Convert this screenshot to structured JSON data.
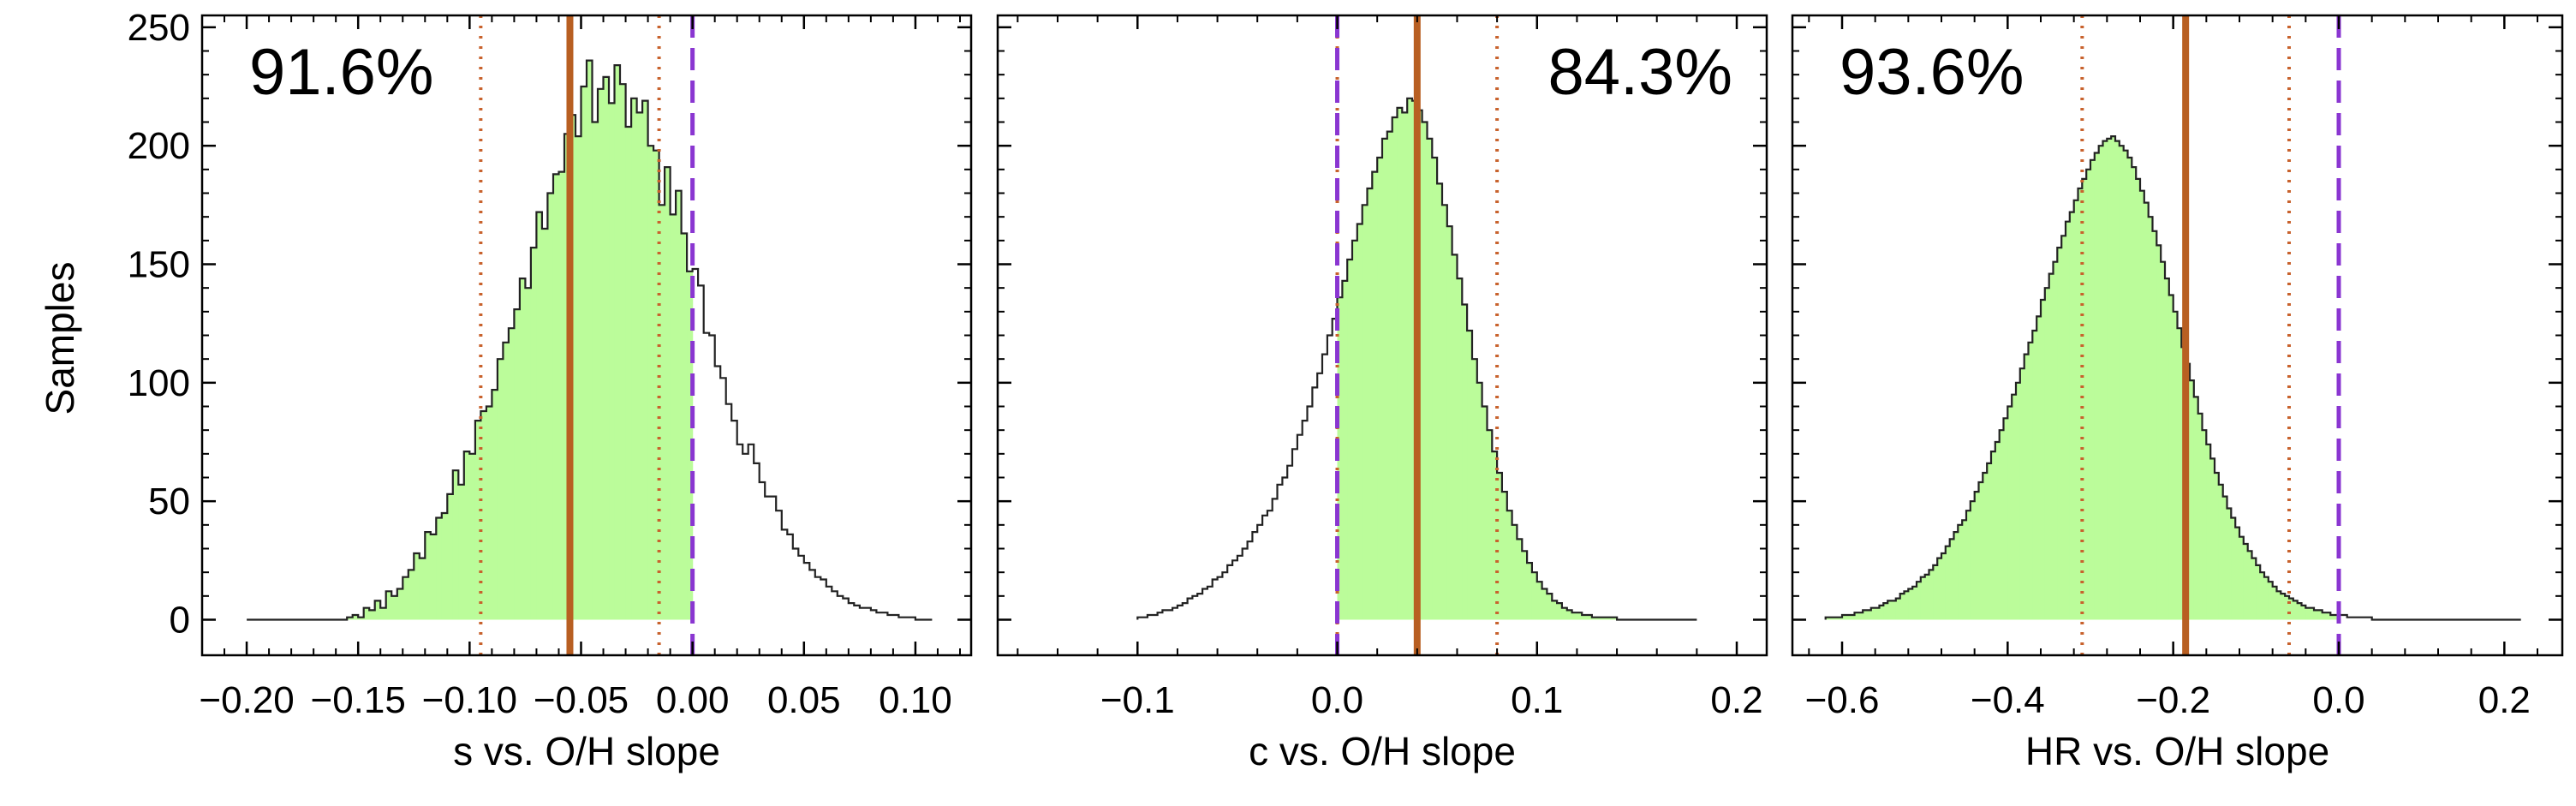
{
  "figure": {
    "ylabel": "Samples",
    "colors": {
      "fill": "#bbfc9a",
      "outline": "#222222",
      "median": "#b85f22",
      "interval": "#c8622d",
      "zero": "#8a36d1"
    }
  },
  "chart_data": [
    {
      "type": "histogram",
      "xlabel": "s vs. O/H slope",
      "ylabel": "Samples",
      "xlim": [
        -0.22,
        0.125
      ],
      "ylim": [
        -15,
        255
      ],
      "xticks": [
        -0.2,
        -0.15,
        -0.1,
        -0.05,
        0.0,
        0.05,
        0.1
      ],
      "xtick_labels": [
        "−0.20",
        "−0.15",
        "−0.10",
        "−0.05",
        "0.00",
        "0.05",
        "0.10"
      ],
      "yticks": [
        0,
        50,
        100,
        150,
        200,
        250
      ],
      "ytick_labels": [
        "0",
        "50",
        "100",
        "150",
        "200",
        "250"
      ],
      "percent_label": "91.6%",
      "percent_position": "top-left",
      "shaded_side": "negative",
      "median": -0.055,
      "interval": [
        -0.095,
        -0.015
      ],
      "zero_line": 0.0,
      "bins": {
        "start": -0.2,
        "end": 0.105,
        "width": 0.0025
      },
      "counts": [
        0,
        0,
        0,
        0,
        0,
        0,
        0,
        0,
        0,
        0,
        0,
        0,
        0,
        0,
        0,
        0,
        0,
        0,
        1,
        2,
        1,
        5,
        4,
        8,
        5,
        12,
        10,
        13,
        18,
        21,
        28,
        26,
        37,
        36,
        43,
        45,
        53,
        63,
        57,
        71,
        70,
        84,
        88,
        90,
        97,
        110,
        117,
        123,
        131,
        144,
        140,
        157,
        172,
        165,
        180,
        188,
        189,
        205,
        213,
        204,
        225,
        236,
        210,
        224,
        229,
        218,
        234,
        226,
        208,
        220,
        214,
        219,
        200,
        198,
        175,
        191,
        171,
        181,
        163,
        147,
        148,
        141,
        121,
        120,
        107,
        102,
        91,
        84,
        74,
        70,
        74,
        66,
        58,
        52,
        52,
        46,
        38,
        36,
        30,
        27,
        24,
        21,
        18,
        17,
        14,
        12,
        10,
        9,
        7,
        6,
        5,
        5,
        4,
        3,
        3,
        2,
        2,
        1,
        1,
        1,
        0,
        0,
        0
      ]
    },
    {
      "type": "histogram",
      "xlabel": "c vs. O/H slope",
      "xlim": [
        -0.17,
        0.215
      ],
      "ylim": [
        -15,
        255
      ],
      "xticks": [
        -0.1,
        0.0,
        0.1,
        0.2
      ],
      "xtick_labels": [
        "−0.1",
        "0.0",
        "0.1",
        "0.2"
      ],
      "yticks": [
        0,
        50,
        100,
        150,
        200,
        250
      ],
      "percent_label": "84.3%",
      "percent_position": "top-right",
      "shaded_side": "positive",
      "median": 0.04,
      "interval": [
        0.0,
        0.08
      ],
      "zero_line": 0.0,
      "bins": {
        "start": -0.1,
        "end": 0.18,
        "width": 0.0025
      },
      "counts": [
        1,
        1,
        2,
        2,
        3,
        4,
        4,
        5,
        6,
        7,
        9,
        10,
        11,
        13,
        14,
        17,
        18,
        20,
        23,
        25,
        27,
        30,
        33,
        37,
        40,
        44,
        46,
        51,
        57,
        60,
        65,
        72,
        78,
        84,
        90,
        98,
        104,
        112,
        120,
        127,
        136,
        143,
        152,
        160,
        167,
        175,
        182,
        189,
        195,
        203,
        206,
        212,
        216,
        214,
        220,
        219,
        215,
        210,
        203,
        195,
        184,
        175,
        166,
        154,
        144,
        133,
        122,
        110,
        100,
        90,
        80,
        71,
        62,
        54,
        46,
        40,
        34,
        29,
        24,
        20,
        16,
        13,
        11,
        8,
        7,
        5,
        4,
        3,
        3,
        2,
        2,
        1,
        1,
        1,
        1,
        1,
        0,
        0,
        0,
        0,
        0,
        0,
        0,
        0,
        0,
        0,
        0,
        0,
        0,
        0,
        0,
        0
      ]
    },
    {
      "type": "histogram",
      "xlabel": "HR vs. O/H slope",
      "xlim": [
        -0.66,
        0.27
      ],
      "ylim": [
        -15,
        255
      ],
      "xticks": [
        -0.6,
        -0.4,
        -0.2,
        0.0,
        0.2
      ],
      "xtick_labels": [
        "−0.6",
        "−0.4",
        "−0.2",
        "0.0",
        "0.2"
      ],
      "yticks": [
        0,
        50,
        100,
        150,
        200,
        250
      ],
      "percent_label": "93.6%",
      "percent_position": "top-left",
      "shaded_side": "negative",
      "median": -0.185,
      "interval": [
        -0.31,
        -0.06
      ],
      "zero_line": 0.0,
      "bins": {
        "start": -0.62,
        "end": 0.22,
        "width": 0.005
      },
      "counts": [
        1,
        1,
        1,
        1,
        2,
        2,
        2,
        3,
        3,
        4,
        4,
        5,
        5,
        6,
        7,
        8,
        8,
        9,
        11,
        12,
        13,
        14,
        16,
        18,
        19,
        21,
        23,
        26,
        28,
        31,
        34,
        37,
        40,
        42,
        46,
        50,
        54,
        58,
        62,
        66,
        71,
        75,
        80,
        85,
        90,
        95,
        100,
        106,
        112,
        117,
        122,
        128,
        135,
        140,
        146,
        151,
        157,
        162,
        168,
        172,
        177,
        182,
        186,
        190,
        194,
        197,
        200,
        202,
        203,
        204,
        202,
        200,
        198,
        195,
        191,
        186,
        181,
        176,
        170,
        164,
        158,
        151,
        144,
        137,
        130,
        123,
        115,
        108,
        101,
        94,
        87,
        80,
        74,
        68,
        62,
        57,
        52,
        47,
        43,
        39,
        35,
        32,
        29,
        26,
        23,
        20,
        18,
        16,
        14,
        12,
        11,
        10,
        9,
        8,
        7,
        6,
        5,
        5,
        4,
        4,
        3,
        3,
        2,
        2,
        2,
        2,
        1,
        1,
        1,
        1,
        1,
        1,
        0,
        0,
        0,
        0,
        0,
        0,
        0,
        0,
        0,
        0,
        0,
        0,
        0,
        0,
        0,
        0,
        0,
        0,
        0,
        0,
        0,
        0,
        0,
        0,
        0,
        0,
        0,
        0,
        0,
        0,
        0,
        0,
        0,
        0,
        0,
        0
      ]
    }
  ]
}
